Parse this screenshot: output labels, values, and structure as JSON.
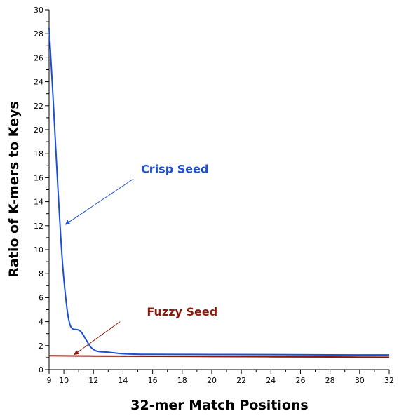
{
  "chart_data": {
    "type": "line",
    "title": "",
    "xlabel": "32-mer Match Positions",
    "ylabel": "Ratio of K-mers to Keys",
    "xlim": [
      9,
      32
    ],
    "ylim": [
      0,
      30
    ],
    "x_ticks": [
      9,
      10,
      11,
      12,
      13,
      14,
      15,
      16,
      17,
      18,
      19,
      20,
      21,
      22,
      23,
      24,
      25,
      26,
      27,
      28,
      29,
      30,
      31,
      32
    ],
    "x_tick_labels": [
      "9",
      "10",
      "12",
      "14",
      "16",
      "18",
      "20",
      "22",
      "24",
      "26",
      "28",
      "30",
      "32"
    ],
    "y_ticks": [
      0,
      1,
      2,
      3,
      4,
      5,
      6,
      7,
      8,
      9,
      10,
      11,
      12,
      13,
      14,
      15,
      16,
      17,
      18,
      19,
      20,
      21,
      22,
      23,
      24,
      25,
      26,
      27,
      28,
      29,
      30
    ],
    "y_tick_labels": [
      "0",
      "2",
      "4",
      "6",
      "8",
      "10",
      "12",
      "14",
      "16",
      "18",
      "20",
      "22",
      "24",
      "26",
      "28",
      "30"
    ],
    "grid": false,
    "legend": "none",
    "series": [
      {
        "name": "Crisp Seed",
        "color": "#1a4fd6",
        "x": [
          9,
          9.3,
          9.6,
          9.9,
          10.2,
          10.4,
          10.6,
          10.8,
          11.0,
          11.2,
          11.5,
          11.8,
          12.1,
          12.4,
          13.0,
          14.0,
          15.0,
          16.0,
          20.0,
          24.0,
          28.0,
          32.0
        ],
        "y": [
          28.5,
          22.0,
          15.0,
          9.0,
          5.2,
          3.8,
          3.4,
          3.35,
          3.3,
          3.1,
          2.5,
          1.9,
          1.6,
          1.5,
          1.45,
          1.32,
          1.28,
          1.27,
          1.26,
          1.25,
          1.23,
          1.22
        ]
      },
      {
        "name": "Fuzzy Seed",
        "color": "#8b1a0e",
        "x": [
          9,
          12,
          16,
          20,
          24,
          28,
          32
        ],
        "y": [
          1.15,
          1.13,
          1.11,
          1.09,
          1.07,
          1.05,
          1.03
        ]
      }
    ],
    "annotations": [
      {
        "text": "Crisp Seed",
        "color": "#1a4fd6",
        "text_x": 17.5,
        "text_y": 16.4,
        "arrow_from_x": 14.7,
        "arrow_from_y": 15.9,
        "arrow_to_x": 10.1,
        "arrow_to_y": 12.1
      },
      {
        "text": "Fuzzy Seed",
        "color": "#8b1a0e",
        "text_x": 18.0,
        "text_y": 4.5,
        "arrow_from_x": 13.8,
        "arrow_from_y": 4.0,
        "arrow_to_x": 10.7,
        "arrow_to_y": 1.25
      }
    ]
  }
}
